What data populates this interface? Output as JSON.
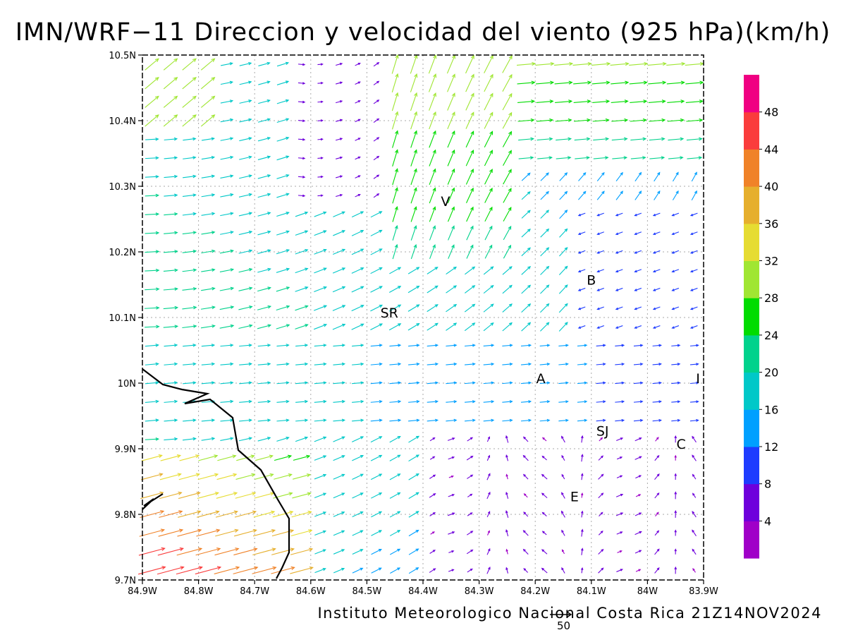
{
  "title": "IMN/WRF−11 Direccion y velocidad del viento (925 hPa)(km/h)",
  "footer": "Instituto Meteorologico Nacional Costa Rica 21Z14NOV2024",
  "reference_vector_label": "50",
  "lat_ticks": [
    "10.5N",
    "10.4N",
    "10.3N",
    "10.2N",
    "10.1N",
    "10N",
    "9.9N",
    "9.8N",
    "9.7N"
  ],
  "lon_ticks": [
    "84.9W",
    "84.8W",
    "84.7W",
    "84.6W",
    "84.5W",
    "84.4W",
    "84.3W",
    "84.2W",
    "84.1W",
    "84W",
    "83.9W"
  ],
  "station_labels": [
    {
      "text": "V",
      "lon": -84.36,
      "lat": 10.27
    },
    {
      "text": "SR",
      "lon": -84.46,
      "lat": 10.1
    },
    {
      "text": "B",
      "lon": -84.1,
      "lat": 10.15
    },
    {
      "text": "A",
      "lon": -84.19,
      "lat": 10.0
    },
    {
      "text": "I",
      "lon": -83.91,
      "lat": 10.0
    },
    {
      "text": "SJ",
      "lon": -84.08,
      "lat": 9.92
    },
    {
      "text": "C",
      "lon": -83.94,
      "lat": 9.9
    },
    {
      "text": "E",
      "lon": -84.13,
      "lat": 9.82
    }
  ],
  "colorbar": {
    "labels": [
      "4",
      "8",
      "12",
      "16",
      "20",
      "24",
      "28",
      "32",
      "36",
      "40",
      "44",
      "48"
    ],
    "colors": [
      "#a000c8",
      "#6e00dc",
      "#1e3cff",
      "#00a0ff",
      "#00c8c8",
      "#00d28c",
      "#00dc00",
      "#a0e632",
      "#e6dc32",
      "#e6af2d",
      "#f08228",
      "#fa3c3c",
      "#f00082"
    ]
  },
  "colors": {
    "grid": "#aaaaaa",
    "frame": "#000000",
    "coastline": "#000000"
  }
}
